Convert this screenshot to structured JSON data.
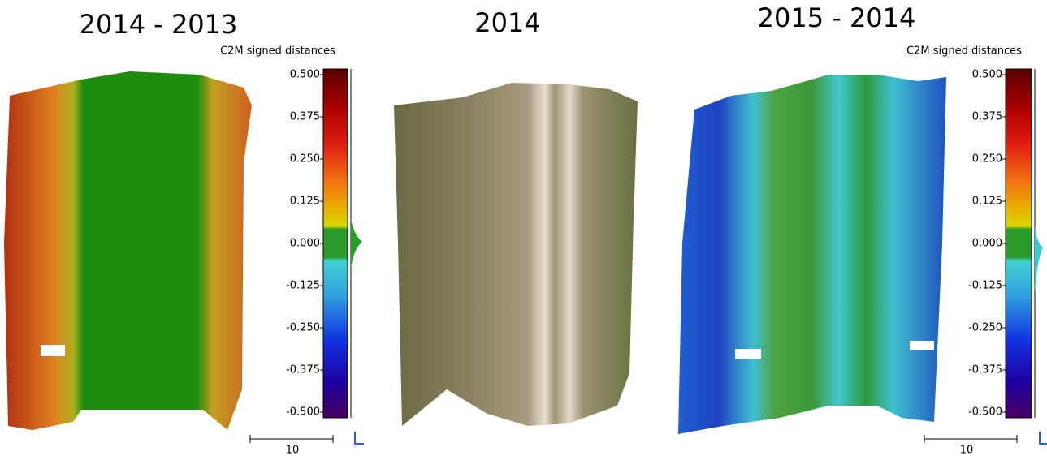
{
  "panels": [
    {
      "title": "2014 - 2013",
      "scale_title": "C2M signed distances",
      "scale_ticks": [
        "0.500",
        "0.375",
        "0.250",
        "0.125",
        "0.000",
        "-0.125",
        "-0.250",
        "-0.375",
        "-0.500"
      ],
      "scale_bar_label": "10"
    },
    {
      "title": "2014"
    },
    {
      "title": "2015 - 2014",
      "scale_title": "C2M signed distances",
      "scale_ticks": [
        "0.500",
        "0.375",
        "0.250",
        "0.125",
        "0.000",
        "-0.125",
        "-0.250",
        "-0.375",
        "-0.500"
      ],
      "scale_bar_label": "10"
    }
  ]
}
